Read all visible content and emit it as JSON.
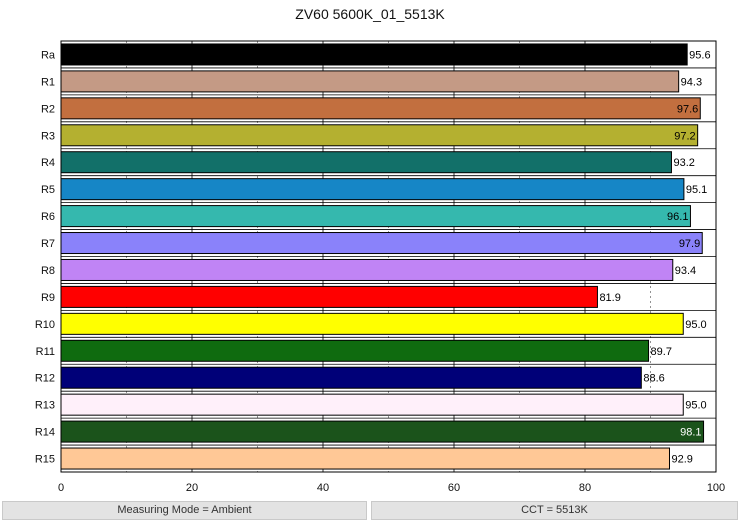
{
  "chart_data": {
    "type": "bar",
    "orientation": "horizontal",
    "title": "ZV60 5600K_01_5513K",
    "xlabel": "",
    "ylabel": "",
    "xlim": [
      0,
      100
    ],
    "xticks": [
      0,
      20,
      40,
      60,
      80,
      100
    ],
    "grid": true,
    "categories": [
      "Ra",
      "R1",
      "R2",
      "R3",
      "R4",
      "R5",
      "R6",
      "R7",
      "R8",
      "R9",
      "R10",
      "R11",
      "R12",
      "R13",
      "R14",
      "R15"
    ],
    "values": [
      95.6,
      94.3,
      97.6,
      97.2,
      93.2,
      95.1,
      96.1,
      97.9,
      93.4,
      81.9,
      95.0,
      89.7,
      88.6,
      95.0,
      98.1,
      92.9
    ],
    "value_labels": [
      "95.6",
      "94.3",
      "97.6",
      "97.2",
      "93.2",
      "95.1",
      "96.1",
      "97.9",
      "93.4",
      "81.9",
      "95.0",
      "89.7",
      "88.6",
      "95.0",
      "98.1",
      "92.9"
    ],
    "colors": [
      "#000000",
      "#c49a85",
      "#c26f3f",
      "#b4b030",
      "#127069",
      "#1686c6",
      "#35b8ae",
      "#8a82fa",
      "#c084f5",
      "#ff0000",
      "#ffff00",
      "#0f6b0f",
      "#000078",
      "#fff0fa",
      "#1b531b",
      "#ffc896"
    ]
  },
  "status": {
    "left": "Measuring Mode = Ambient",
    "right": "CCT = 5513K"
  }
}
